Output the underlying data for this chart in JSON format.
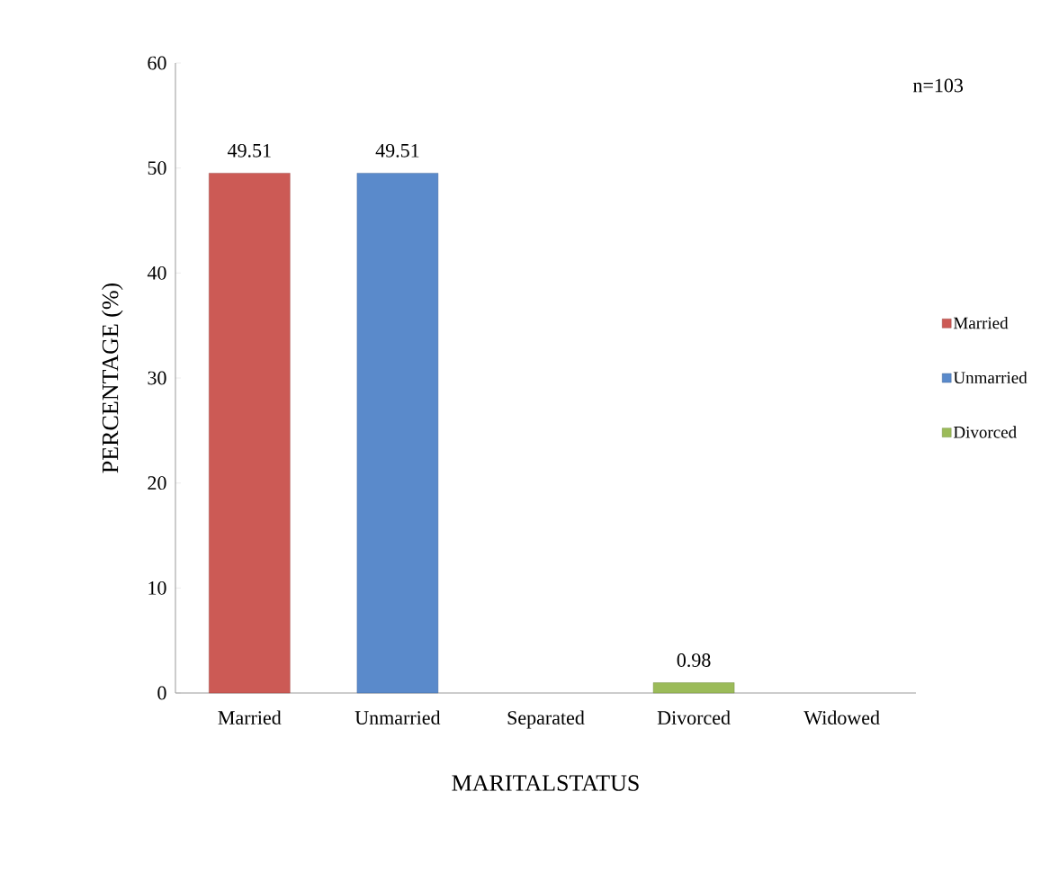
{
  "chart_data": {
    "type": "bar",
    "xlabel": "MARITALSTATUS",
    "ylabel": "PERCENTAGE (%)",
    "categories": [
      "Married",
      "Unmarried",
      "Separated",
      "Divorced",
      "Widowed"
    ],
    "series": [
      {
        "name": "Married",
        "color": "#cc5a55",
        "values": [
          49.51,
          null,
          null,
          null,
          null
        ]
      },
      {
        "name": "Unmarried",
        "color": "#5a8acb",
        "values": [
          null,
          49.51,
          null,
          null,
          null
        ]
      },
      {
        "name": "Divorced",
        "color": "#9bbb59",
        "values": [
          null,
          null,
          null,
          0.98,
          null
        ]
      }
    ],
    "ylim": [
      0,
      60
    ],
    "yticks": [
      0,
      10,
      20,
      30,
      40,
      50,
      60
    ],
    "data_labels": true,
    "legend": "right",
    "annotations": [
      "n=103"
    ]
  }
}
